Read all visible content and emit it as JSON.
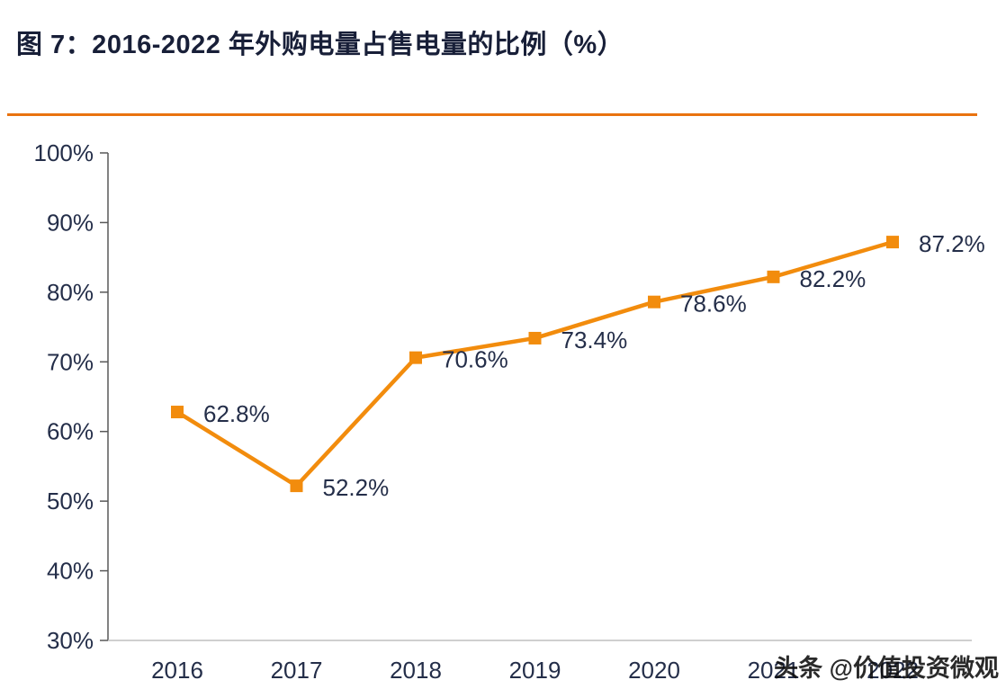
{
  "title": "图 7：2016-2022 年外购电量占售电量的比例（%）",
  "watermark": "头条 @价值投资微观",
  "colors": {
    "accent": "#f28c0d",
    "divider": "#e9730f",
    "title_text": "#181f38",
    "axis_text": "#242e49",
    "label_text": "#242e49",
    "y_axis_line": "#595959",
    "x_axis_line": "#bfbfbf"
  },
  "chart_data": {
    "type": "line",
    "title": "图 7：2016-2022 年外购电量占售电量的比例（%）",
    "categories": [
      "2016",
      "2017",
      "2018",
      "2019",
      "2020",
      "2021",
      "2022"
    ],
    "series": [
      {
        "name": "外购电量占售电量的比例",
        "values": [
          62.8,
          52.2,
          70.6,
          73.4,
          78.6,
          82.2,
          87.2
        ]
      }
    ],
    "data_labels": [
      "62.8%",
      "52.2%",
      "70.6%",
      "73.4%",
      "78.6%",
      "82.2%",
      "87.2%"
    ],
    "xlabel": "",
    "ylabel": "",
    "ylim": [
      30,
      100
    ],
    "ytick_step": 10,
    "ytick_labels": [
      "30%",
      "40%",
      "50%",
      "60%",
      "70%",
      "80%",
      "90%",
      "100%"
    ],
    "grid": false,
    "legend": false,
    "marker": "square",
    "line_color": "#f28c0d"
  }
}
